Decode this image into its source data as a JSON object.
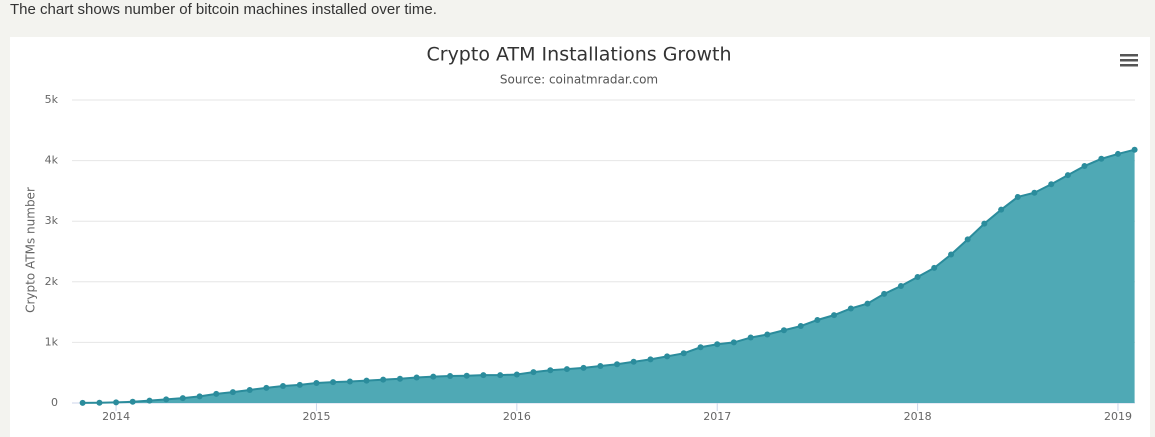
{
  "page": {
    "intro": "The chart shows number of bitcoin machines installed over time."
  },
  "chart_data": {
    "type": "area",
    "title": "Crypto ATM Installations Growth",
    "subtitle": "Source: coinatmradar.com",
    "y_label": "Crypto ATMs number",
    "x": [
      2013.833,
      2013.917,
      2014.0,
      2014.083,
      2014.167,
      2014.25,
      2014.333,
      2014.417,
      2014.5,
      2014.583,
      2014.667,
      2014.75,
      2014.833,
      2014.917,
      2015.0,
      2015.083,
      2015.167,
      2015.25,
      2015.333,
      2015.417,
      2015.5,
      2015.583,
      2015.667,
      2015.75,
      2015.833,
      2015.917,
      2016.0,
      2016.083,
      2016.167,
      2016.25,
      2016.333,
      2016.417,
      2016.5,
      2016.583,
      2016.667,
      2016.75,
      2016.833,
      2016.917,
      2017.0,
      2017.083,
      2017.167,
      2017.25,
      2017.333,
      2017.417,
      2017.5,
      2017.583,
      2017.667,
      2017.75,
      2017.833,
      2017.917,
      2018.0,
      2018.083,
      2018.167,
      2018.25,
      2018.333,
      2018.417,
      2018.5,
      2018.583,
      2018.667,
      2018.75,
      2018.833,
      2018.917,
      2019.0,
      2019.083
    ],
    "series": [
      {
        "name": "Crypto ATMs",
        "color": "#4fa9b5",
        "line_color": "#2b8c9c",
        "values": [
          2,
          5,
          10,
          20,
          40,
          60,
          80,
          110,
          150,
          180,
          215,
          250,
          280,
          300,
          330,
          345,
          355,
          370,
          385,
          400,
          420,
          435,
          445,
          450,
          460,
          460,
          470,
          510,
          540,
          560,
          580,
          610,
          640,
          680,
          720,
          770,
          820,
          920,
          970,
          1000,
          1080,
          1130,
          1200,
          1270,
          1370,
          1450,
          1560,
          1640,
          1800,
          1930,
          2080,
          2230,
          2450,
          2700,
          2960,
          3190,
          3400,
          3470,
          3610,
          3760,
          3910,
          4030,
          4110,
          4180
        ]
      }
    ],
    "xlim": [
      2013.78,
      2019.085
    ],
    "xticks": [
      2014,
      2015,
      2016,
      2017,
      2018,
      2019
    ],
    "ylim": [
      0,
      5000
    ],
    "yticks": [
      0,
      {
        "value": 1000,
        "label": "1k"
      },
      {
        "value": 2000,
        "label": "2k"
      },
      {
        "value": 3000,
        "label": "3k"
      },
      {
        "value": 4000,
        "label": "4k"
      },
      {
        "value": 5000,
        "label": "5k"
      }
    ],
    "grid": true
  }
}
